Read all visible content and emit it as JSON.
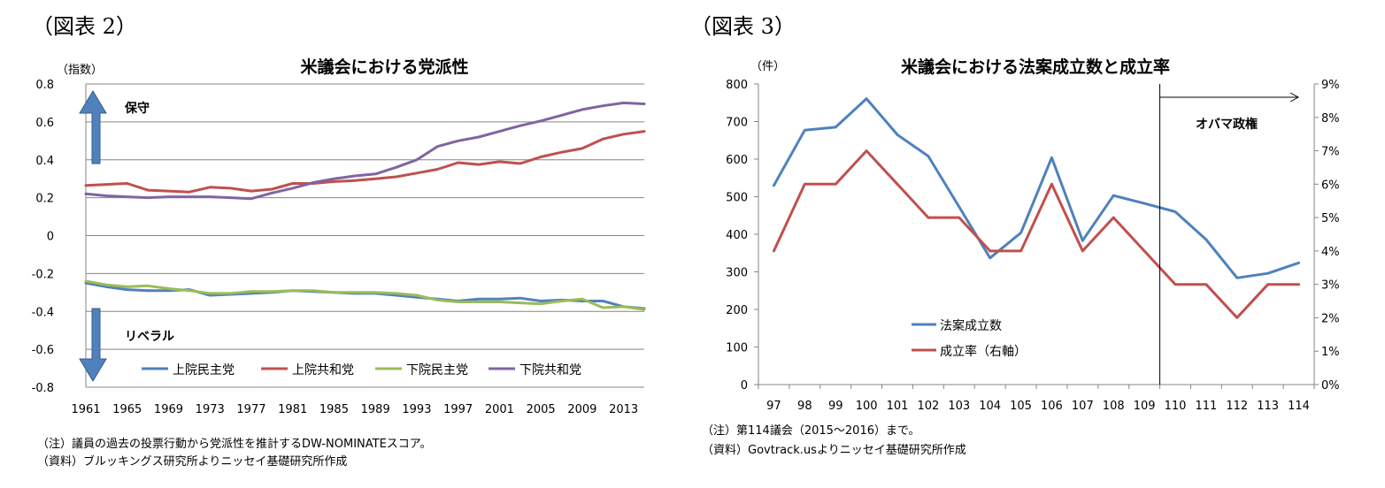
{
  "figure2": {
    "label": "（図表 2）",
    "note_1": "（注）議員の過去の投票行動から党派性を推計するDW-NOMINATEスコア。",
    "note_2": "（資料）ブルッキングス研究所よりニッセイ基礎研究所作成"
  },
  "figure3": {
    "label": "（図表 3）",
    "note_1": "（注）第114議会（2015～2016）まで。",
    "note_2": "（資料）Govtrack.usよりニッセイ基礎研究所作成"
  },
  "chart_data": [
    {
      "type": "line",
      "title": "米議会における党派性",
      "ylabel": "（指数）",
      "xlabel": "",
      "ylim": [
        -0.8,
        0.8
      ],
      "y_ticks": [
        "0.8",
        "0.6",
        "0.4",
        "0.2",
        "0",
        "-0.2",
        "-0.4",
        "-0.6",
        "-0.8"
      ],
      "x_tick_labels": [
        "1961",
        "1965",
        "1969",
        "1973",
        "1977",
        "1981",
        "1985",
        "1989",
        "1993",
        "1997",
        "2001",
        "2005",
        "2009",
        "2013"
      ],
      "x": [
        1961,
        1963,
        1965,
        1967,
        1969,
        1971,
        1973,
        1975,
        1977,
        1979,
        1981,
        1983,
        1985,
        1987,
        1989,
        1991,
        1993,
        1995,
        1997,
        1999,
        2001,
        2003,
        2005,
        2007,
        2009,
        2011,
        2013,
        2015
      ],
      "grid": true,
      "legend_position": "bottom",
      "annotations": {
        "up": "保守",
        "down": "リベラル"
      },
      "colors": {
        "arrow": "#4f81bd"
      },
      "series": [
        {
          "name": "上院民主党",
          "color": "#4f81bd",
          "values": [
            -0.25,
            -0.27,
            -0.285,
            -0.29,
            -0.29,
            -0.285,
            -0.315,
            -0.31,
            -0.305,
            -0.3,
            -0.29,
            -0.295,
            -0.3,
            -0.305,
            -0.305,
            -0.315,
            -0.325,
            -0.335,
            -0.345,
            -0.335,
            -0.335,
            -0.33,
            -0.345,
            -0.34,
            -0.345,
            -0.345,
            -0.375,
            -0.385
          ]
        },
        {
          "name": "上院共和党",
          "color": "#c0504d",
          "values": [
            0.265,
            0.27,
            0.275,
            0.24,
            0.235,
            0.23,
            0.255,
            0.25,
            0.235,
            0.245,
            0.275,
            0.275,
            0.285,
            0.29,
            0.3,
            0.31,
            0.33,
            0.35,
            0.385,
            0.375,
            0.39,
            0.38,
            0.415,
            0.44,
            0.46,
            0.51,
            0.535,
            0.55
          ]
        },
        {
          "name": "下院民主党",
          "color": "#9bbb59",
          "values": [
            -0.24,
            -0.26,
            -0.27,
            -0.265,
            -0.28,
            -0.29,
            -0.305,
            -0.305,
            -0.295,
            -0.295,
            -0.29,
            -0.29,
            -0.3,
            -0.3,
            -0.3,
            -0.305,
            -0.315,
            -0.34,
            -0.35,
            -0.35,
            -0.35,
            -0.355,
            -0.36,
            -0.345,
            -0.335,
            -0.38,
            -0.375,
            -0.39
          ]
        },
        {
          "name": "下院共和党",
          "color": "#8064a2",
          "values": [
            0.22,
            0.21,
            0.205,
            0.2,
            0.205,
            0.205,
            0.205,
            0.2,
            0.195,
            0.225,
            0.25,
            0.28,
            0.3,
            0.315,
            0.325,
            0.36,
            0.4,
            0.47,
            0.5,
            0.52,
            0.55,
            0.58,
            0.605,
            0.635,
            0.665,
            0.685,
            0.7,
            0.695
          ]
        }
      ]
    },
    {
      "type": "line",
      "title": "米議会における法案成立数と成立率",
      "ylabel": "（件）",
      "xlabel": "",
      "categories": [
        "97",
        "98",
        "99",
        "100",
        "101",
        "102",
        "103",
        "104",
        "105",
        "106",
        "107",
        "108",
        "109",
        "110",
        "111",
        "112",
        "113",
        "114"
      ],
      "ylim": [
        0,
        800
      ],
      "y2lim": [
        0,
        9
      ],
      "y_ticks": [
        "800",
        "700",
        "600",
        "500",
        "400",
        "300",
        "200",
        "100",
        "0"
      ],
      "y2_ticks": [
        "9%",
        "8%",
        "7%",
        "6%",
        "5%",
        "4%",
        "3%",
        "2%",
        "1%",
        "0%"
      ],
      "grid": false,
      "legend_position": "bottom-left",
      "annotations": {
        "obama": "オバマ政権"
      },
      "series": [
        {
          "name": "法案成立数",
          "axis": "left",
          "color": "#4f81bd",
          "values": [
            530,
            677,
            685,
            761,
            665,
            608,
            473,
            337,
            404,
            604,
            383,
            503,
            482,
            460,
            386,
            284,
            296,
            324
          ]
        },
        {
          "name": "成立率（右軸）",
          "axis": "right",
          "color": "#c0504d",
          "values": [
            4,
            6,
            6,
            7,
            6,
            5,
            5,
            4,
            4,
            6,
            4,
            5,
            4,
            3,
            3,
            2,
            3,
            3
          ]
        }
      ]
    }
  ]
}
